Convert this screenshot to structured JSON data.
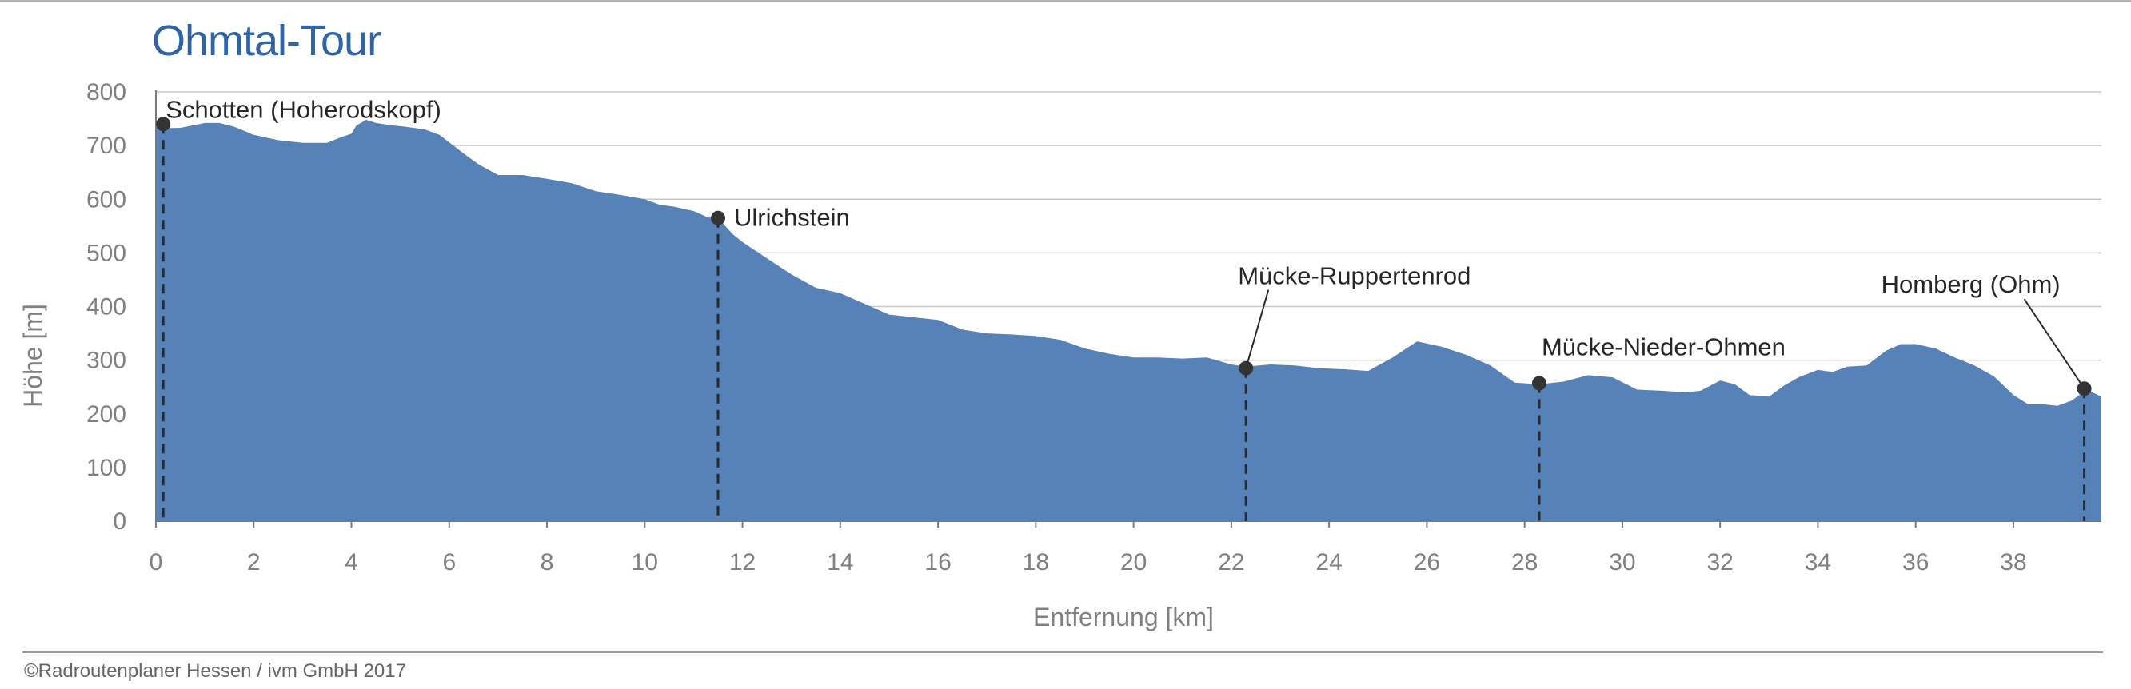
{
  "chart_data": {
    "type": "area",
    "title": "Ohmtal-Tour",
    "xlabel": "Entfernung [km]",
    "ylabel": "Höhe [m]",
    "xlim": [
      0,
      39.8
    ],
    "ylim": [
      0,
      800
    ],
    "x_ticks": [
      "0",
      "2",
      "4",
      "6",
      "8",
      "10",
      "12",
      "14",
      "16",
      "18",
      "20",
      "22",
      "24",
      "26",
      "28",
      "30",
      "32",
      "34",
      "36",
      "38"
    ],
    "y_ticks": [
      "0",
      "100",
      "200",
      "300",
      "400",
      "500",
      "600",
      "700",
      "800"
    ],
    "grid": true,
    "fill_color": "#5682b8",
    "series": [
      {
        "x": [
          0,
          0.1,
          0.5,
          1.0,
          1.3,
          1.6,
          2.0,
          2.5,
          3.0,
          3.5,
          3.8,
          4.0,
          4.1,
          4.3,
          4.5,
          4.8,
          5.1,
          5.5,
          5.8,
          6.0,
          6.3,
          6.6,
          7.0,
          7.5,
          8.0,
          8.5,
          9.0,
          9.5,
          10.0,
          10.3,
          10.6,
          11.0,
          11.3,
          11.5,
          11.8,
          12.0,
          12.5,
          13.0,
          13.5,
          14.0,
          14.5,
          15.0,
          15.5,
          16.0,
          16.5,
          17.0,
          17.5,
          18.0,
          18.5,
          19.0,
          19.5,
          20.0,
          20.5,
          21.0,
          21.5,
          22.0,
          22.3,
          22.8,
          23.3,
          23.8,
          24.3,
          24.8,
          25.3,
          25.8,
          26.3,
          26.8,
          27.3,
          27.8,
          28.3,
          28.8,
          29.3,
          29.8,
          30.3,
          30.8,
          31.3,
          31.6,
          32.0,
          32.3,
          32.6,
          33.0,
          33.3,
          33.6,
          34.0,
          34.3,
          34.6,
          35.0,
          35.4,
          35.7,
          36.0,
          36.4,
          36.8,
          37.2,
          37.6,
          38.0,
          38.3,
          38.6,
          38.9,
          39.2,
          39.5,
          39.8
        ],
        "y": [
          735,
          732,
          733,
          742,
          742,
          735,
          720,
          710,
          705,
          705,
          716,
          722,
          737,
          748,
          742,
          738,
          735,
          730,
          720,
          706,
          685,
          665,
          645,
          645,
          638,
          630,
          615,
          608,
          600,
          590,
          586,
          578,
          566,
          565,
          535,
          520,
          490,
          460,
          435,
          425,
          405,
          385,
          380,
          375,
          357,
          350,
          348,
          345,
          338,
          322,
          312,
          305,
          305,
          303,
          305,
          292,
          288,
          292,
          290,
          285,
          283,
          280,
          305,
          335,
          325,
          310,
          290,
          258,
          255,
          260,
          272,
          268,
          245,
          243,
          240,
          243,
          262,
          255,
          235,
          232,
          252,
          268,
          282,
          278,
          288,
          290,
          318,
          330,
          330,
          322,
          305,
          290,
          270,
          235,
          218,
          218,
          215,
          225,
          245,
          232
        ]
      }
    ],
    "markers": [
      {
        "label": "Schotten (Hoherodskopf)",
        "x": 0.15,
        "y": 740
      },
      {
        "label": "Ulrichstein",
        "x": 11.5,
        "y": 565
      },
      {
        "label": "Mücke-Ruppertenrod",
        "x": 22.3,
        "y": 285
      },
      {
        "label": "Mücke-Nieder-Ohmen",
        "x": 28.3,
        "y": 257
      },
      {
        "label": "Homberg (Ohm)",
        "x": 39.45,
        "y": 247
      }
    ]
  },
  "footer": {
    "copyright": "©Radroutenplaner Hessen / ivm GmbH 2017"
  }
}
